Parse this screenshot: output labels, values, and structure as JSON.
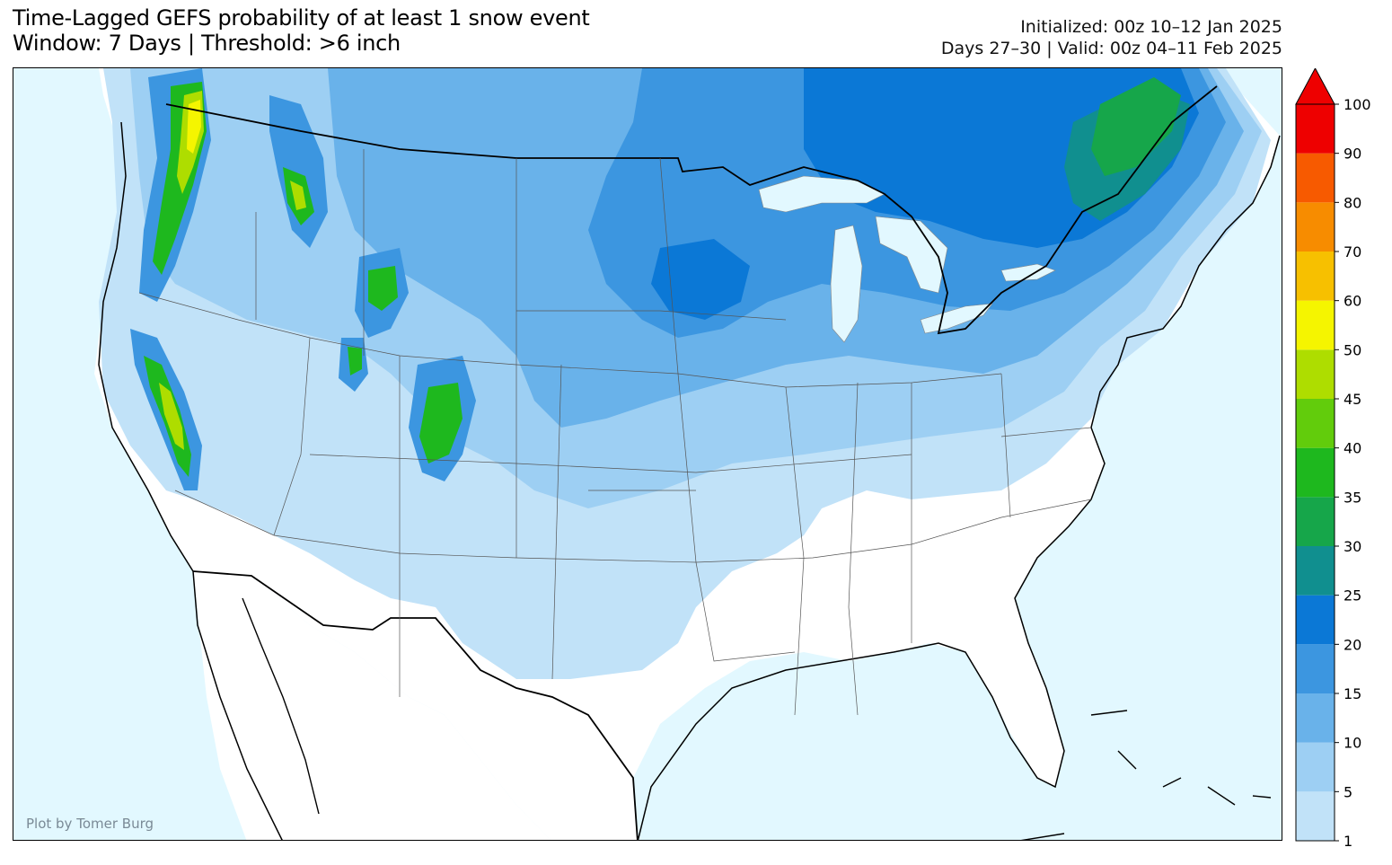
{
  "header": {
    "title_line1": "Time-Lagged GEFS probability of at least 1 snow event",
    "title_line2": "Window: 7 Days | Threshold: >6 inch",
    "initialized": "Initialized: 00z 10–12 Jan 2025",
    "valid": "Days 27–30 | Valid: 00z 04–11 Feb 2025"
  },
  "map": {
    "region": "Contiguous United States",
    "ocean_color": "#e2f8ff",
    "land_color": "#ffffff",
    "credit": "Plot by Tomer Burg"
  },
  "colorbar": {
    "levels": [
      "1",
      "5",
      "10",
      "15",
      "20",
      "25",
      "30",
      "35",
      "40",
      "45",
      "50",
      "60",
      "70",
      "80",
      "90",
      "100"
    ],
    "colors": [
      "#c1e2f8",
      "#9dcff3",
      "#69b2ea",
      "#3c96e0",
      "#0b78d6",
      "#108f8f",
      "#16a64a",
      "#1eb81e",
      "#62cc0c",
      "#aedd00",
      "#f5f500",
      "#f7c000",
      "#f78c00",
      "#f75a00",
      "#ee0000"
    ],
    "extend": "max",
    "extend_color": "#ee0000"
  }
}
